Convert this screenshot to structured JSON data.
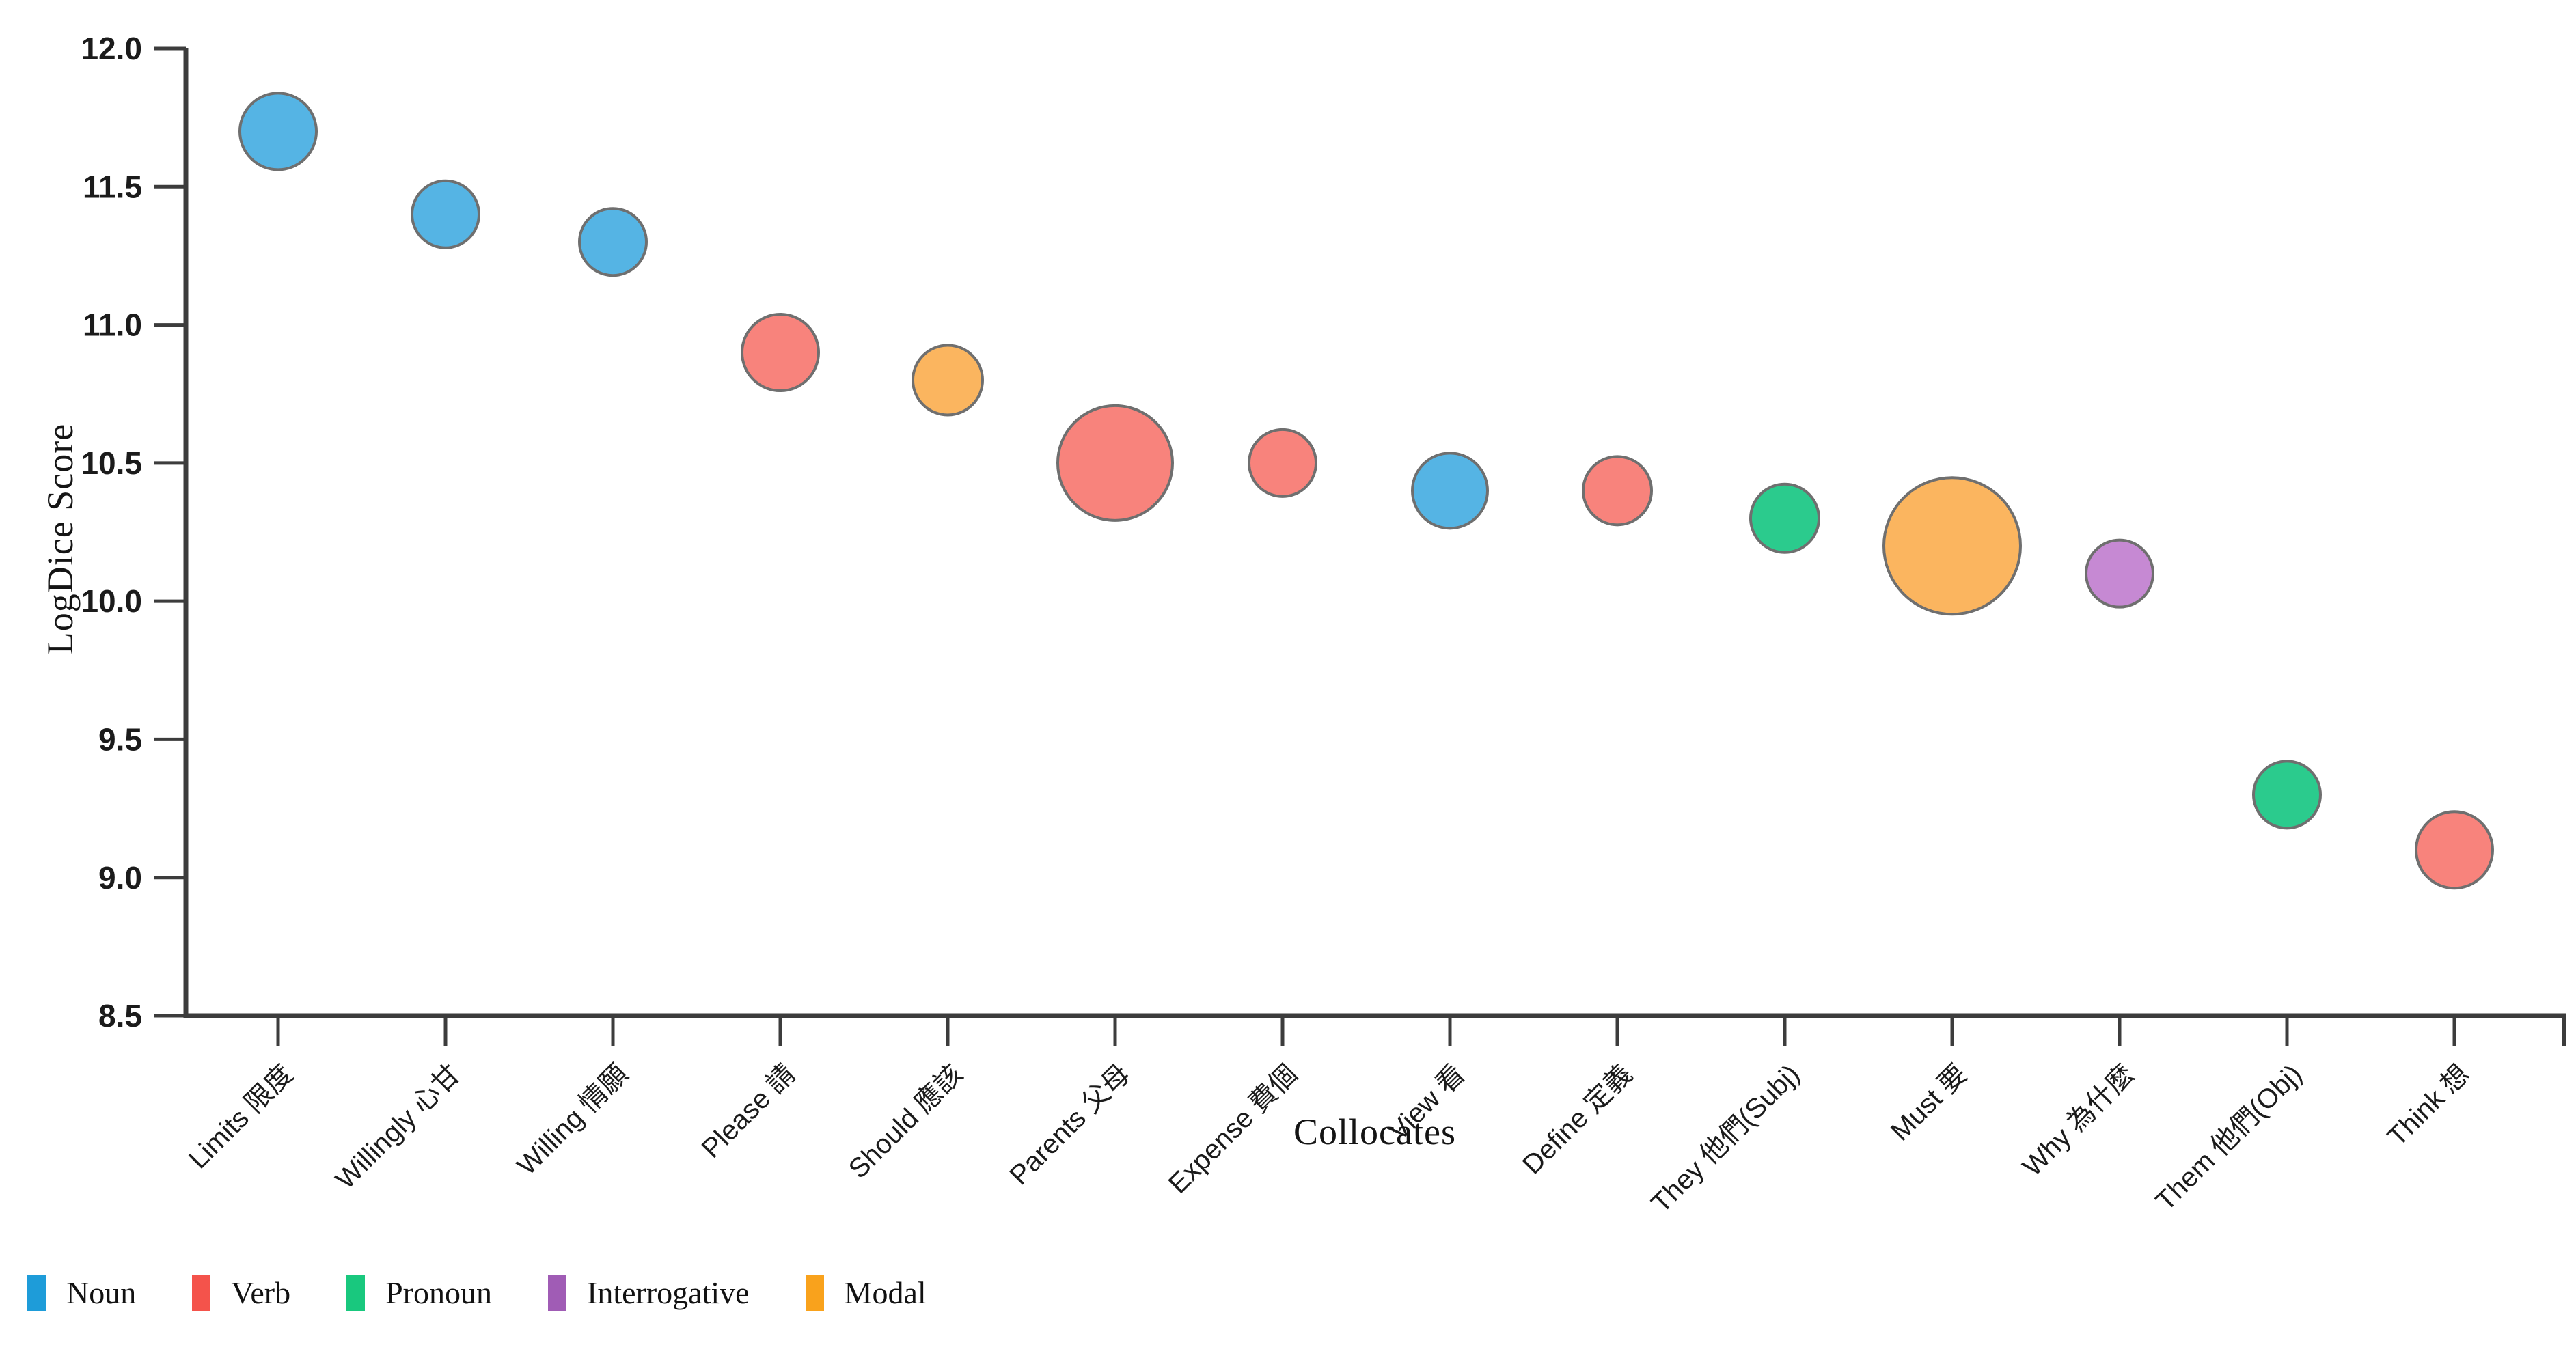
{
  "chart_data": {
    "type": "bubble",
    "title": "",
    "xlabel": "Collocates",
    "ylabel": "LogDice Score",
    "ylim": [
      8.5,
      12.0
    ],
    "ytick_labels": [
      "12.0",
      "11.5",
      "11.0",
      "10.5",
      "10.0",
      "9.5",
      "9.0",
      "8.5"
    ],
    "grid": false,
    "legend_position": "bottom-left",
    "axis_color": "#3c3c3c",
    "text_color": "#1b1b1b",
    "categories": [
      "Limits 限度",
      "Willingly 心甘",
      "Willing 情願",
      "Please 請",
      "Should 應該",
      "Parents 父母",
      "Expense 費個",
      "View 看",
      "Define 定義",
      "They 他們(Subj)",
      "Must 要",
      "Why 為什麼",
      "Them 他們(Obj)",
      "Think 想"
    ],
    "points": [
      {
        "category": "Limits 限度",
        "word_class": "Noun",
        "logdice": 11.7,
        "radius": 56
      },
      {
        "category": "Willingly 心甘",
        "word_class": "Noun",
        "logdice": 11.4,
        "radius": 49
      },
      {
        "category": "Willing 情願",
        "word_class": "Noun",
        "logdice": 11.3,
        "radius": 49
      },
      {
        "category": "Please 請",
        "word_class": "Verb",
        "logdice": 10.9,
        "radius": 56
      },
      {
        "category": "Should 應該",
        "word_class": "Modal",
        "logdice": 10.8,
        "radius": 51
      },
      {
        "category": "Parents 父母",
        "word_class": "Verb",
        "logdice": 10.5,
        "radius": 84
      },
      {
        "category": "Expense 費個",
        "word_class": "Verb",
        "logdice": 10.5,
        "radius": 49
      },
      {
        "category": "View 看",
        "word_class": "Noun",
        "logdice": 10.4,
        "radius": 55
      },
      {
        "category": "Define 定義",
        "word_class": "Verb",
        "logdice": 10.4,
        "radius": 50
      },
      {
        "category": "They 他們(Subj)",
        "word_class": "Pronoun",
        "logdice": 10.3,
        "radius": 50
      },
      {
        "category": "Must 要",
        "word_class": "Modal",
        "logdice": 10.2,
        "radius": 100
      },
      {
        "category": "Why 為什麼",
        "word_class": "Interrogative",
        "logdice": 10.1,
        "radius": 49
      },
      {
        "category": "Them 他們(Obj)",
        "word_class": "Pronoun",
        "logdice": 9.3,
        "radius": 49
      },
      {
        "category": "Think 想",
        "word_class": "Verb",
        "logdice": 9.1,
        "radius": 56
      }
    ],
    "legend": [
      {
        "label": "Noun",
        "color": "#1E9CD9",
        "fill": "#55B4E4"
      },
      {
        "label": "Verb",
        "color": "#F4534B",
        "fill": "#F8837C"
      },
      {
        "label": "Pronoun",
        "color": "#19C87E",
        "fill": "#2BCB8D"
      },
      {
        "label": "Interrogative",
        "color": "#A05CB5",
        "fill": "#C689D3"
      },
      {
        "label": "Modal",
        "color": "#F9A21C",
        "fill": "#FBB55F"
      }
    ],
    "point_stroke": {
      "color": "#6F6F6F",
      "width": 4
    }
  }
}
